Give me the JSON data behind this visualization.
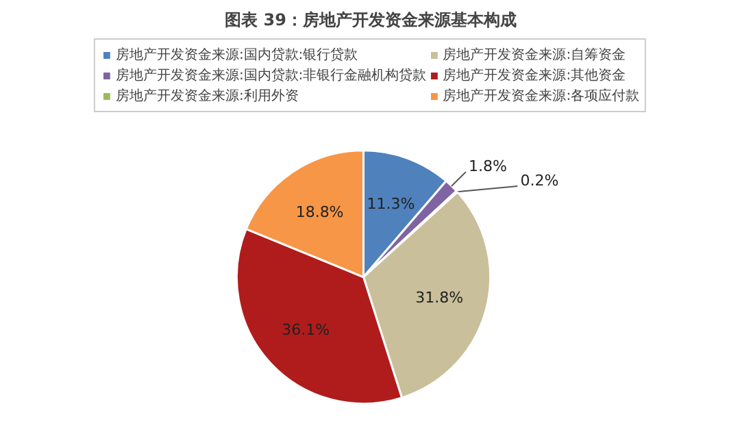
{
  "chart_data": {
    "type": "pie",
    "title": "图表 39：房地产开发资金来源基本构成",
    "categories": [
      "房地产开发资金来源:国内贷款:银行贷款",
      "房地产开发资金来源:国内贷款:非银行金融机构贷款",
      "房地产开发资金来源:利用外资",
      "房地产开发资金来源:自筹资金",
      "房地产开发资金来源:其他资金",
      "房地产开发资金来源:各项应付款"
    ],
    "values": [
      11.3,
      1.8,
      0.2,
      31.8,
      36.1,
      18.8
    ],
    "colors": [
      "#4f81bd",
      "#8064a2",
      "#9bbb59",
      "#c9bf9a",
      "#b01c1c",
      "#f79646"
    ],
    "value_labels": [
      "11.3%",
      "1.8%",
      "0.2%",
      "31.8%",
      "36.1%",
      "18.8%"
    ],
    "legend": "top"
  }
}
